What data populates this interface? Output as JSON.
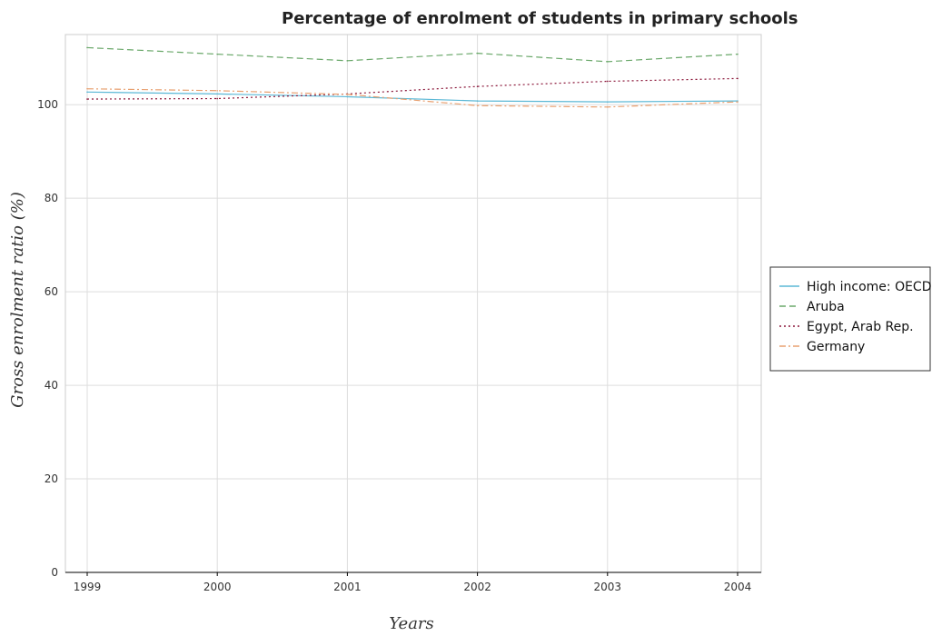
{
  "chart_data": {
    "type": "line",
    "title": "Percentage of enrolment of students in primary schools",
    "xlabel": "Years",
    "ylabel": "Gross enrolment ratio (%)",
    "categories": [
      "1999",
      "2000",
      "2001",
      "2002",
      "2003",
      "2004"
    ],
    "ylim": [
      0,
      115
    ],
    "yticks": [
      "0",
      "20",
      "40",
      "60",
      "80",
      "100"
    ],
    "grid": true,
    "legend_position": "right",
    "series": [
      {
        "name": "High income: OECD",
        "color": "#5bb8d6",
        "dash": "",
        "values": [
          102.7,
          102.3,
          101.7,
          100.8,
          100.6,
          100.8
        ]
      },
      {
        "name": "Aruba",
        "color": "#6aa86a",
        "dash": "7,4",
        "values": [
          112.2,
          110.8,
          109.4,
          111.0,
          109.2,
          110.8
        ]
      },
      {
        "name": "Egypt, Arab Rep.",
        "color": "#8a1538",
        "dash": "2,3",
        "values": [
          101.2,
          101.3,
          102.3,
          103.9,
          105.0,
          105.6
        ]
      },
      {
        "name": "Germany",
        "color": "#e8a070",
        "dash": "7,3,2,3",
        "values": [
          103.4,
          103.0,
          102.2,
          99.8,
          99.5,
          100.6
        ]
      }
    ]
  }
}
